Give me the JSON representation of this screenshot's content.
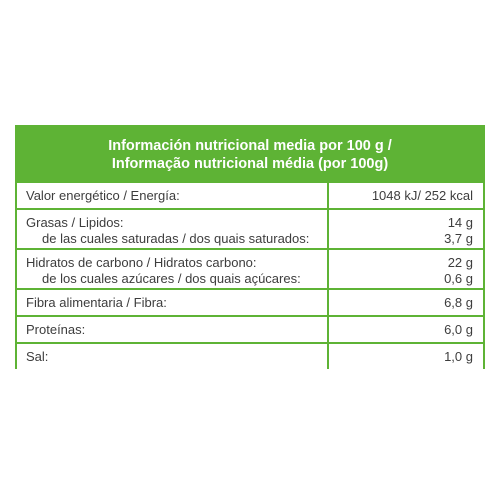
{
  "table": {
    "title_es": "Información nutricional media por 100 g /",
    "title_pt": "Informação nutricional média (por 100g)",
    "rows": [
      {
        "label": "Valor energético / Energía:",
        "value": "1048 kJ/ 252 kcal"
      },
      {
        "label": "Grasas / Lipidos:",
        "value": "14 g",
        "sub_label": "de las cuales saturadas / dos quais saturados:",
        "sub_value": "3,7 g"
      },
      {
        "label": "Hidratos de carbono / Hidratos carbono:",
        "value": "22 g",
        "sub_label": "de los cuales azúcares / dos quais açúcares:",
        "sub_value": "0,6 g"
      },
      {
        "label": "Fibra alimentaria / Fibra:",
        "value": "6,8 g"
      },
      {
        "label": "Proteínas:",
        "value": "6,0 g"
      },
      {
        "label": "Sal:",
        "value": "1,0 g"
      }
    ]
  },
  "colors": {
    "border_green": "#5eb335",
    "text": "#3d3d3d",
    "header_text": "#ffffff"
  }
}
